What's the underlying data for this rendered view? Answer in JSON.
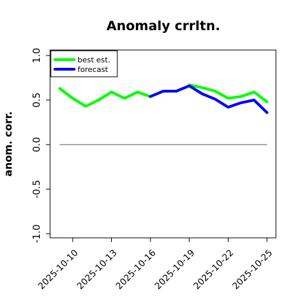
{
  "chart_data": {
    "type": "line",
    "title": "Anomaly crrltn.",
    "xlabel": "",
    "ylabel": "anom. corr.",
    "ylim": [
      -1.0,
      1.0
    ],
    "yticks": [
      "-1.0",
      "-0.5",
      "0.0",
      "0.5",
      "1.0"
    ],
    "reference_line": 0.0,
    "x": [
      "2025-10-09",
      "2025-10-10",
      "2025-10-11",
      "2025-10-12",
      "2025-10-13",
      "2025-10-14",
      "2025-10-15",
      "2025-10-16",
      "2025-10-17",
      "2025-10-18",
      "2025-10-19",
      "2025-10-20",
      "2025-10-21",
      "2025-10-22",
      "2025-10-23",
      "2025-10-24",
      "2025-10-25"
    ],
    "xticks": [
      "2025-10-10",
      "2025-10-13",
      "2025-10-16",
      "2025-10-19",
      "2025-10-22",
      "2025-10-25"
    ],
    "highlight_tick": "2025-10-16",
    "highlight_color": "#228B22",
    "grid": false,
    "legend_position": "top-left",
    "series": [
      {
        "name": "best est.",
        "color": "#00ff00",
        "x": [
          "2025-10-09",
          "2025-10-10",
          "2025-10-11",
          "2025-10-12",
          "2025-10-13",
          "2025-10-14",
          "2025-10-15",
          "2025-10-16"
        ],
        "values": [
          0.63,
          0.52,
          0.43,
          0.5,
          0.59,
          0.52,
          0.59,
          0.54
        ]
      },
      {
        "name": "best est.",
        "color": "#00ff00",
        "x": [
          "2025-10-19",
          "2025-10-20",
          "2025-10-21",
          "2025-10-22",
          "2025-10-23",
          "2025-10-24",
          "2025-10-25"
        ],
        "values": [
          0.67,
          0.64,
          0.6,
          0.52,
          0.54,
          0.59,
          0.48
        ]
      },
      {
        "name": "forecast",
        "color": "#0000ff",
        "x": [
          "2025-10-16",
          "2025-10-17",
          "2025-10-18",
          "2025-10-19",
          "2025-10-20",
          "2025-10-21",
          "2025-10-22",
          "2025-10-23",
          "2025-10-24",
          "2025-10-25"
        ],
        "values": [
          0.54,
          0.6,
          0.6,
          0.66,
          0.57,
          0.51,
          0.42,
          0.47,
          0.5,
          0.36
        ]
      }
    ]
  }
}
